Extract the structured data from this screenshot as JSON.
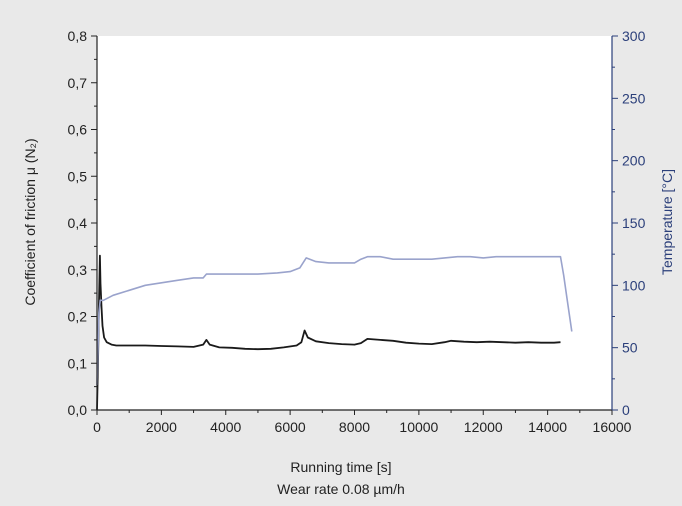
{
  "chart_data": {
    "type": "line",
    "title": "",
    "xlabel": "Running time [s]",
    "subtitle": "Wear rate 0.08 µm/h",
    "ylabel_left": "Coefficient of friction μ (N₂)",
    "ylabel_right": "Temperature [°C]",
    "xlim": [
      0,
      16000
    ],
    "ylim_left": [
      0,
      0.8
    ],
    "ylim_right": [
      0,
      300
    ],
    "x_ticks": [
      "0",
      "2000",
      "4000",
      "6000",
      "8000",
      "10000",
      "12000",
      "14000",
      "16000"
    ],
    "y_left_ticks": [
      "0,0",
      "0,1",
      "0,2",
      "0,3",
      "0,4",
      "0,5",
      "0,6",
      "0,7",
      "0,8"
    ],
    "y_right_ticks": [
      "0",
      "50",
      "100",
      "150",
      "200",
      "250",
      "300"
    ],
    "grid": false,
    "colors": {
      "friction": "#1a1a1a",
      "temperature": "#9aa3cc",
      "right_axis": "#2b3f7a",
      "plot_bg": "#ffffff",
      "page_bg": "#e9e9e9"
    },
    "series": [
      {
        "axis": "left",
        "points": [
          [
            0,
            0.0
          ],
          [
            30,
            0.1
          ],
          [
            60,
            0.22
          ],
          [
            90,
            0.33
          ],
          [
            110,
            0.27
          ],
          [
            140,
            0.22
          ],
          [
            170,
            0.18
          ],
          [
            220,
            0.155
          ],
          [
            300,
            0.145
          ],
          [
            450,
            0.14
          ],
          [
            600,
            0.138
          ],
          [
            1000,
            0.138
          ],
          [
            1500,
            0.138
          ],
          [
            2000,
            0.137
          ],
          [
            2500,
            0.136
          ],
          [
            3000,
            0.135
          ],
          [
            3300,
            0.14
          ],
          [
            3400,
            0.15
          ],
          [
            3500,
            0.14
          ],
          [
            3800,
            0.134
          ],
          [
            4200,
            0.133
          ],
          [
            4600,
            0.131
          ],
          [
            5000,
            0.13
          ],
          [
            5400,
            0.131
          ],
          [
            5800,
            0.134
          ],
          [
            6200,
            0.138
          ],
          [
            6350,
            0.145
          ],
          [
            6450,
            0.17
          ],
          [
            6550,
            0.155
          ],
          [
            6800,
            0.147
          ],
          [
            7200,
            0.143
          ],
          [
            7600,
            0.141
          ],
          [
            8000,
            0.14
          ],
          [
            8200,
            0.143
          ],
          [
            8400,
            0.152
          ],
          [
            8800,
            0.15
          ],
          [
            9200,
            0.148
          ],
          [
            9600,
            0.144
          ],
          [
            10000,
            0.142
          ],
          [
            10400,
            0.141
          ],
          [
            10800,
            0.145
          ],
          [
            11000,
            0.148
          ],
          [
            11400,
            0.146
          ],
          [
            11800,
            0.145
          ],
          [
            12200,
            0.146
          ],
          [
            12600,
            0.145
          ],
          [
            13000,
            0.144
          ],
          [
            13400,
            0.145
          ],
          [
            13800,
            0.144
          ],
          [
            14200,
            0.144
          ],
          [
            14400,
            0.145
          ]
        ]
      },
      {
        "axis": "right",
        "points": [
          [
            0,
            20
          ],
          [
            30,
            50
          ],
          [
            60,
            78
          ],
          [
            100,
            88
          ],
          [
            200,
            88
          ],
          [
            500,
            92
          ],
          [
            1000,
            96
          ],
          [
            1500,
            100
          ],
          [
            2000,
            102
          ],
          [
            2500,
            104
          ],
          [
            3000,
            106
          ],
          [
            3300,
            106
          ],
          [
            3400,
            109
          ],
          [
            3800,
            109
          ],
          [
            4200,
            109
          ],
          [
            4600,
            109
          ],
          [
            5000,
            109
          ],
          [
            5600,
            110
          ],
          [
            6000,
            111
          ],
          [
            6300,
            114
          ],
          [
            6400,
            118
          ],
          [
            6500,
            122
          ],
          [
            6800,
            119
          ],
          [
            7200,
            118
          ],
          [
            7600,
            118
          ],
          [
            8000,
            118
          ],
          [
            8200,
            121
          ],
          [
            8400,
            123
          ],
          [
            8800,
            123
          ],
          [
            9200,
            121
          ],
          [
            9600,
            121
          ],
          [
            10000,
            121
          ],
          [
            10400,
            121
          ],
          [
            10800,
            122
          ],
          [
            11200,
            123
          ],
          [
            11600,
            123
          ],
          [
            12000,
            122
          ],
          [
            12400,
            123
          ],
          [
            12800,
            123
          ],
          [
            13200,
            123
          ],
          [
            13600,
            123
          ],
          [
            14000,
            123
          ],
          [
            14400,
            123
          ],
          [
            14500,
            108
          ],
          [
            14600,
            90
          ],
          [
            14750,
            63
          ]
        ]
      }
    ]
  }
}
